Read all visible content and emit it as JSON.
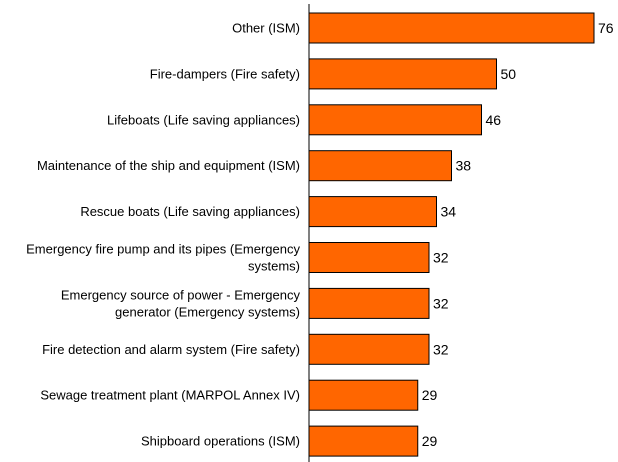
{
  "chart_data": {
    "type": "bar",
    "orientation": "horizontal",
    "categories": [
      [
        "Other (ISM)"
      ],
      [
        "Fire-dampers (Fire safety)"
      ],
      [
        "Lifeboats (Life saving appliances)"
      ],
      [
        "Maintenance of the ship and equipment (ISM)"
      ],
      [
        "Rescue boats (Life saving appliances)"
      ],
      [
        "Emergency fire pump and its pipes (Emergency",
        "systems)"
      ],
      [
        "Emergency source of power - Emergency",
        "generator (Emergency systems)"
      ],
      [
        "Fire detection and alarm system (Fire safety)"
      ],
      [
        "Sewage treatment plant (MARPOL Annex IV)"
      ],
      [
        "Shipboard operations (ISM)"
      ]
    ],
    "values": [
      76,
      50,
      46,
      38,
      34,
      32,
      32,
      32,
      29,
      29
    ],
    "title": "",
    "xlabel": "",
    "ylabel": "",
    "xlim": [
      0,
      76
    ],
    "grid": false,
    "legend": "none",
    "bar_color": "#FF6600",
    "data_labels": true
  }
}
